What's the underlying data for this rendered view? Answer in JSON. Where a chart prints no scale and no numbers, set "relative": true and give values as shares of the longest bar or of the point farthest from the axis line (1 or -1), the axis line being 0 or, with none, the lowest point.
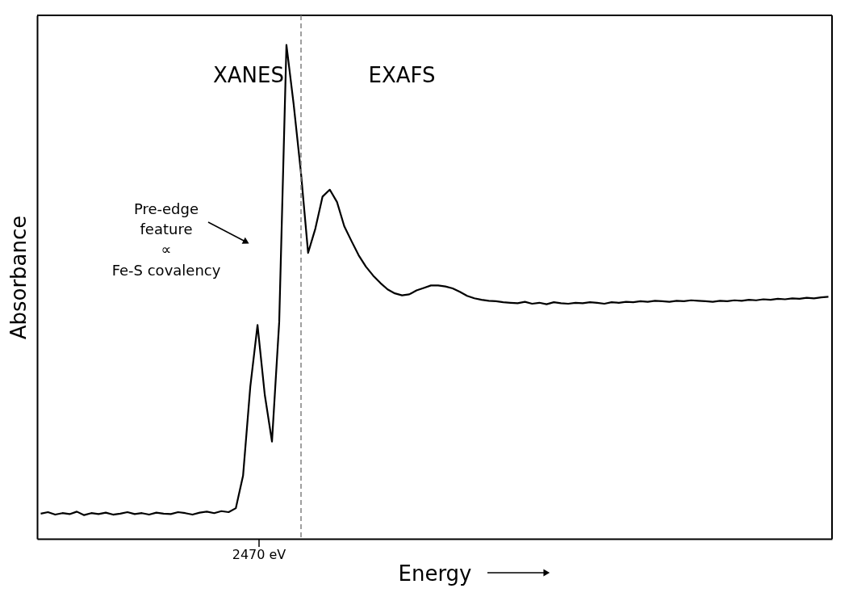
{
  "chart_data": {
    "type": "line",
    "relative": true,
    "xlabel": "Energy",
    "ylabel": "Absorbance",
    "grid": false,
    "marker": "none",
    "line_style": "solid",
    "categories": [
      null,
      null,
      null,
      null,
      null,
      null,
      null,
      null,
      null,
      null,
      null,
      null,
      null,
      null,
      null,
      null,
      null,
      null,
      null,
      null,
      null,
      null,
      null,
      null,
      null,
      null,
      null,
      null,
      null,
      null,
      null,
      null,
      null,
      null,
      null,
      null,
      null,
      null,
      null,
      null,
      null,
      null,
      null,
      null,
      null,
      null,
      null,
      null,
      null,
      null,
      null,
      null,
      null,
      null,
      null,
      null,
      null,
      null,
      null,
      null,
      null,
      null,
      null,
      null,
      null,
      null,
      null,
      null,
      null,
      null,
      null,
      null,
      null,
      null,
      null,
      null,
      null,
      null,
      null,
      null,
      null,
      null,
      null,
      null,
      null,
      null,
      null,
      null,
      null,
      null,
      null,
      null,
      null,
      null,
      null,
      null,
      null,
      null,
      null,
      null,
      null,
      null,
      null,
      null,
      null,
      null,
      null,
      null,
      null,
      null
    ],
    "series": [
      {
        "color": "#000000",
        "values": [
          0.051,
          0.054,
          0.049,
          0.052,
          0.05,
          0.055,
          0.048,
          0.052,
          0.05,
          0.053,
          0.049,
          0.051,
          0.054,
          0.05,
          0.052,
          0.049,
          0.053,
          0.051,
          0.05,
          0.054,
          0.052,
          0.049,
          0.053,
          0.055,
          0.052,
          0.056,
          0.054,
          0.062,
          0.128,
          0.308,
          0.433,
          0.292,
          0.197,
          0.439,
          1.0,
          0.88,
          0.743,
          0.579,
          0.628,
          0.693,
          0.707,
          0.682,
          0.633,
          0.603,
          0.574,
          0.551,
          0.533,
          0.518,
          0.505,
          0.497,
          0.493,
          0.495,
          0.503,
          0.508,
          0.513,
          0.513,
          0.511,
          0.507,
          0.5,
          0.492,
          0.487,
          0.484,
          0.482,
          0.481,
          0.479,
          0.478,
          0.477,
          0.48,
          0.476,
          0.478,
          0.475,
          0.479,
          0.477,
          0.476,
          0.478,
          0.477,
          0.479,
          0.478,
          0.476,
          0.479,
          0.478,
          0.48,
          0.479,
          0.481,
          0.48,
          0.482,
          0.481,
          0.48,
          0.482,
          0.481,
          0.483,
          0.482,
          0.481,
          0.48,
          0.482,
          0.481,
          0.483,
          0.482,
          0.484,
          0.483,
          0.485,
          0.484,
          0.486,
          0.485,
          0.487,
          0.486,
          0.488,
          0.487,
          0.489,
          0.49
        ]
      }
    ],
    "annotations": [
      "XANES",
      "EXAFS",
      "Pre-edge\nfeature\n∝\nFe-S covalency",
      "2470 eV"
    ]
  }
}
